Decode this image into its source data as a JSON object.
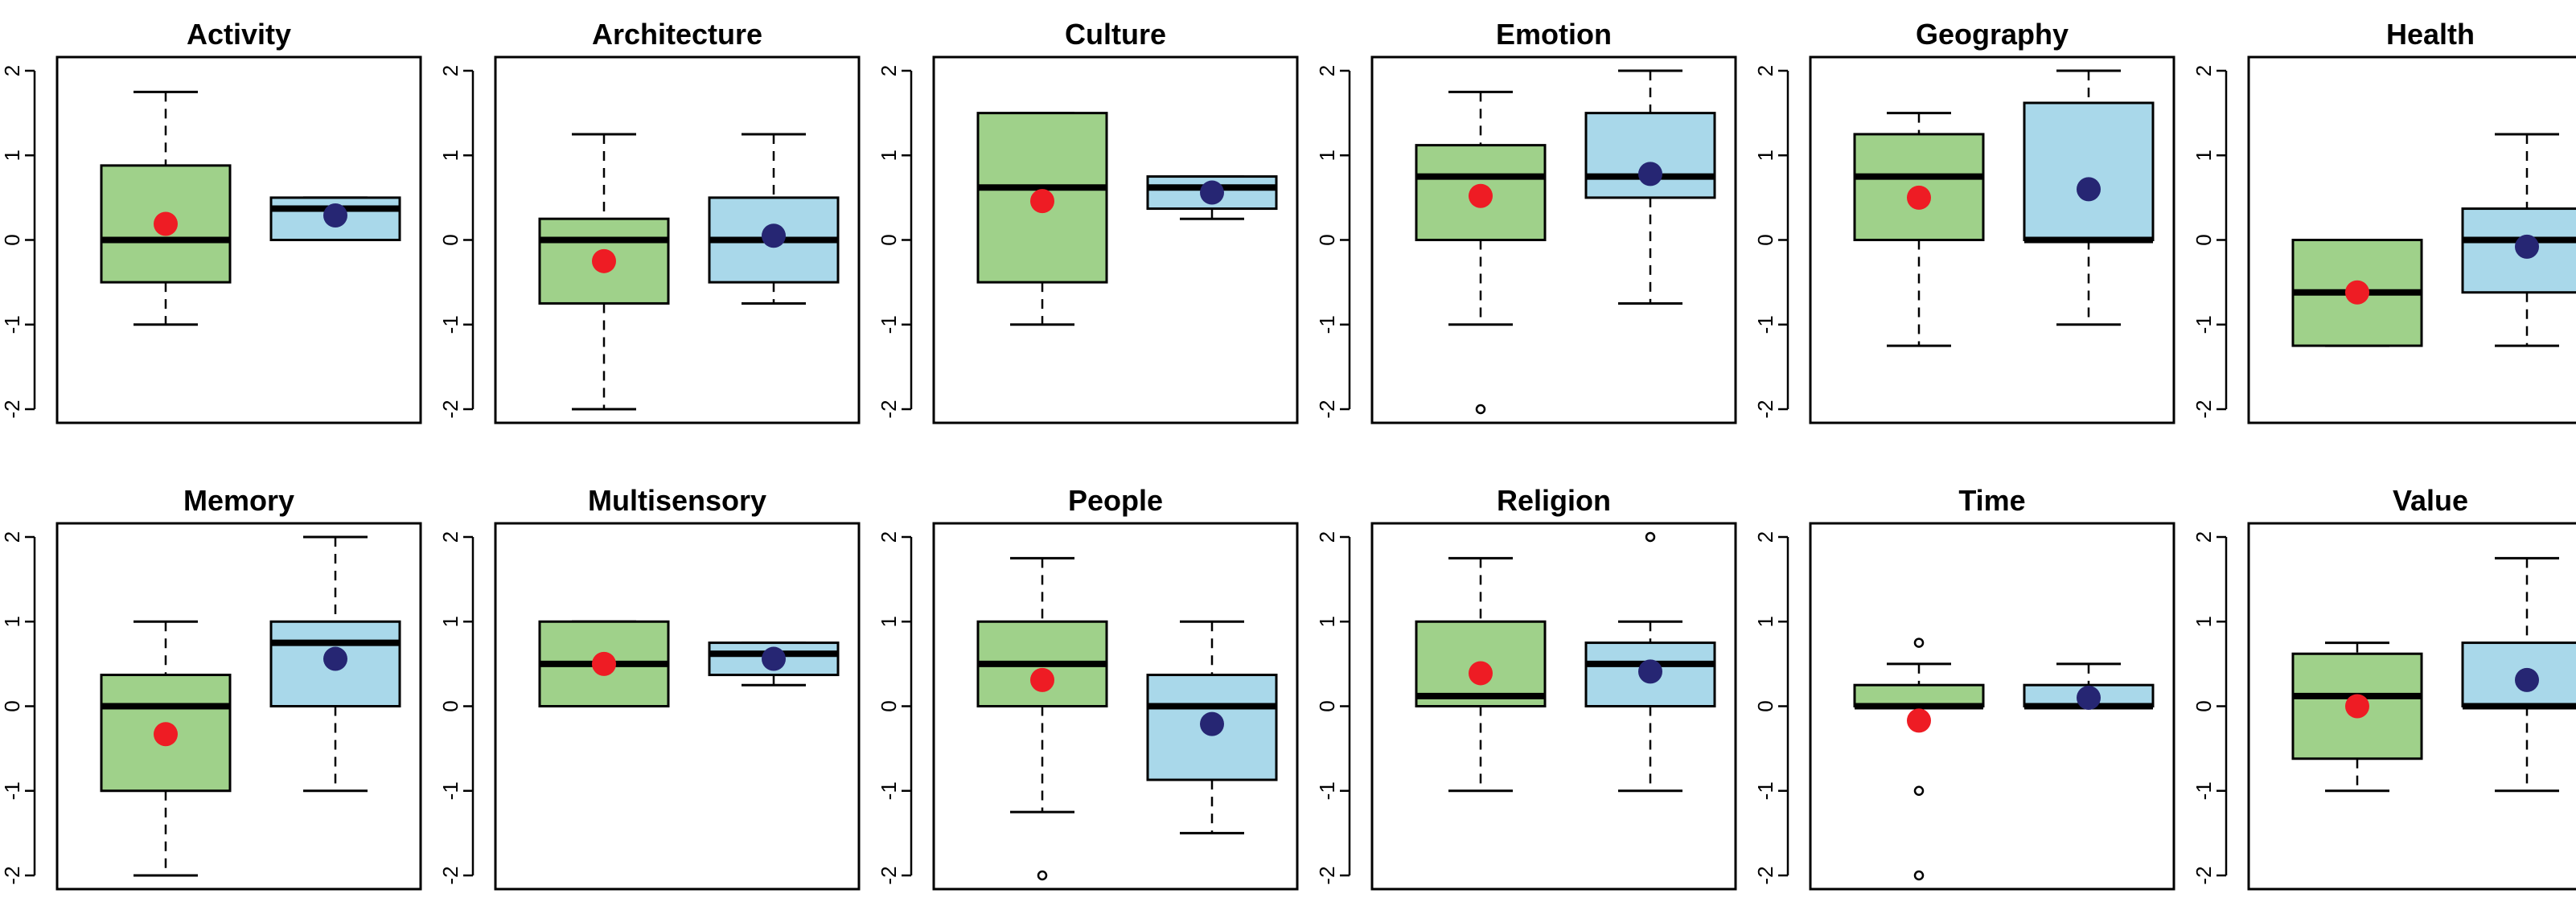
{
  "colors": {
    "group1_fill": "#9fd18a",
    "group2_fill": "#a9d8ea",
    "group1_mean": "#ee1c24",
    "group2_mean": "#262673"
  },
  "chart_data": {
    "type": "boxplot",
    "ylim": [
      -2,
      2
    ],
    "yticks": [
      "2",
      "1",
      "0",
      "-1",
      "-2"
    ],
    "ytick_values": [
      2,
      1,
      0,
      -1,
      -2
    ],
    "panels": [
      {
        "title": "Activity",
        "boxes": [
          {
            "whisker_low": -1,
            "q1": -0.5,
            "median": 0,
            "q3": 0.88,
            "whisker_high": 1.75,
            "mean": 0.19,
            "outliers": []
          },
          {
            "whisker_low": 0,
            "q1": 0,
            "median": 0.37,
            "q3": 0.5,
            "whisker_high": 0.5,
            "mean": 0.29,
            "outliers": []
          }
        ]
      },
      {
        "title": "Architecture",
        "boxes": [
          {
            "whisker_low": -2,
            "q1": -0.75,
            "median": 0,
            "q3": 0.25,
            "whisker_high": 1.25,
            "mean": -0.25,
            "outliers": []
          },
          {
            "whisker_low": -0.75,
            "q1": -0.5,
            "median": 0,
            "q3": 0.5,
            "whisker_high": 1.25,
            "mean": 0.05,
            "outliers": []
          }
        ]
      },
      {
        "title": "Culture",
        "boxes": [
          {
            "whisker_low": -1,
            "q1": -0.5,
            "median": 0.62,
            "q3": 1.5,
            "whisker_high": 1.5,
            "mean": 0.46,
            "outliers": []
          },
          {
            "whisker_low": 0.25,
            "q1": 0.37,
            "median": 0.62,
            "q3": 0.75,
            "whisker_high": 0.75,
            "mean": 0.56,
            "outliers": []
          }
        ]
      },
      {
        "title": "Emotion",
        "boxes": [
          {
            "whisker_low": -1,
            "q1": 0,
            "median": 0.75,
            "q3": 1.12,
            "whisker_high": 1.75,
            "mean": 0.52,
            "outliers": [
              -2
            ]
          },
          {
            "whisker_low": -0.75,
            "q1": 0.5,
            "median": 0.75,
            "q3": 1.5,
            "whisker_high": 2,
            "mean": 0.78,
            "outliers": []
          }
        ]
      },
      {
        "title": "Geography",
        "boxes": [
          {
            "whisker_low": -1.25,
            "q1": 0,
            "median": 0.75,
            "q3": 1.25,
            "whisker_high": 1.5,
            "mean": 0.5,
            "outliers": []
          },
          {
            "whisker_low": -1,
            "q1": 0,
            "median": 0,
            "q3": 1.62,
            "whisker_high": 2,
            "mean": 0.6,
            "outliers": []
          }
        ]
      },
      {
        "title": "Health",
        "boxes": [
          {
            "whisker_low": -1.25,
            "q1": -1.25,
            "median": -0.62,
            "q3": 0,
            "whisker_high": 0,
            "mean": -0.62,
            "outliers": []
          },
          {
            "whisker_low": -1.25,
            "q1": -0.62,
            "median": 0,
            "q3": 0.37,
            "whisker_high": 1.25,
            "mean": -0.08,
            "outliers": []
          }
        ]
      },
      {
        "title": "Memory",
        "boxes": [
          {
            "whisker_low": -2,
            "q1": -1,
            "median": 0,
            "q3": 0.37,
            "whisker_high": 1,
            "mean": -0.33,
            "outliers": []
          },
          {
            "whisker_low": -1,
            "q1": 0,
            "median": 0.75,
            "q3": 1,
            "whisker_high": 2,
            "mean": 0.56,
            "outliers": []
          }
        ]
      },
      {
        "title": "Multisensory",
        "boxes": [
          {
            "whisker_low": 0,
            "q1": 0,
            "median": 0.5,
            "q3": 1,
            "whisker_high": 1,
            "mean": 0.5,
            "outliers": []
          },
          {
            "whisker_low": 0.25,
            "q1": 0.37,
            "median": 0.62,
            "q3": 0.75,
            "whisker_high": 0.75,
            "mean": 0.56,
            "outliers": []
          }
        ]
      },
      {
        "title": "People",
        "boxes": [
          {
            "whisker_low": -1.25,
            "q1": 0,
            "median": 0.5,
            "q3": 1,
            "whisker_high": 1.75,
            "mean": 0.31,
            "outliers": [
              -2
            ]
          },
          {
            "whisker_low": -1.5,
            "q1": -0.87,
            "median": 0,
            "q3": 0.37,
            "whisker_high": 1,
            "mean": -0.21,
            "outliers": []
          }
        ]
      },
      {
        "title": "Religion",
        "boxes": [
          {
            "whisker_low": -1,
            "q1": 0,
            "median": 0.12,
            "q3": 1,
            "whisker_high": 1.75,
            "mean": 0.39,
            "outliers": []
          },
          {
            "whisker_low": -1,
            "q1": 0,
            "median": 0.5,
            "q3": 0.75,
            "whisker_high": 1,
            "mean": 0.41,
            "outliers": [
              2
            ]
          }
        ]
      },
      {
        "title": "Time",
        "boxes": [
          {
            "whisker_low": 0,
            "q1": 0,
            "median": 0,
            "q3": 0.25,
            "whisker_high": 0.5,
            "mean": -0.17,
            "outliers": [
              0.75,
              -1,
              -2
            ]
          },
          {
            "whisker_low": 0,
            "q1": 0,
            "median": 0,
            "q3": 0.25,
            "whisker_high": 0.5,
            "mean": 0.1,
            "outliers": []
          }
        ]
      },
      {
        "title": "Value",
        "boxes": [
          {
            "whisker_low": -1,
            "q1": -0.62,
            "median": 0.12,
            "q3": 0.62,
            "whisker_high": 0.75,
            "mean": 0,
            "outliers": []
          },
          {
            "whisker_low": -1,
            "q1": 0,
            "median": 0,
            "q3": 0.75,
            "whisker_high": 1.75,
            "mean": 0.31,
            "outliers": []
          }
        ]
      }
    ]
  }
}
